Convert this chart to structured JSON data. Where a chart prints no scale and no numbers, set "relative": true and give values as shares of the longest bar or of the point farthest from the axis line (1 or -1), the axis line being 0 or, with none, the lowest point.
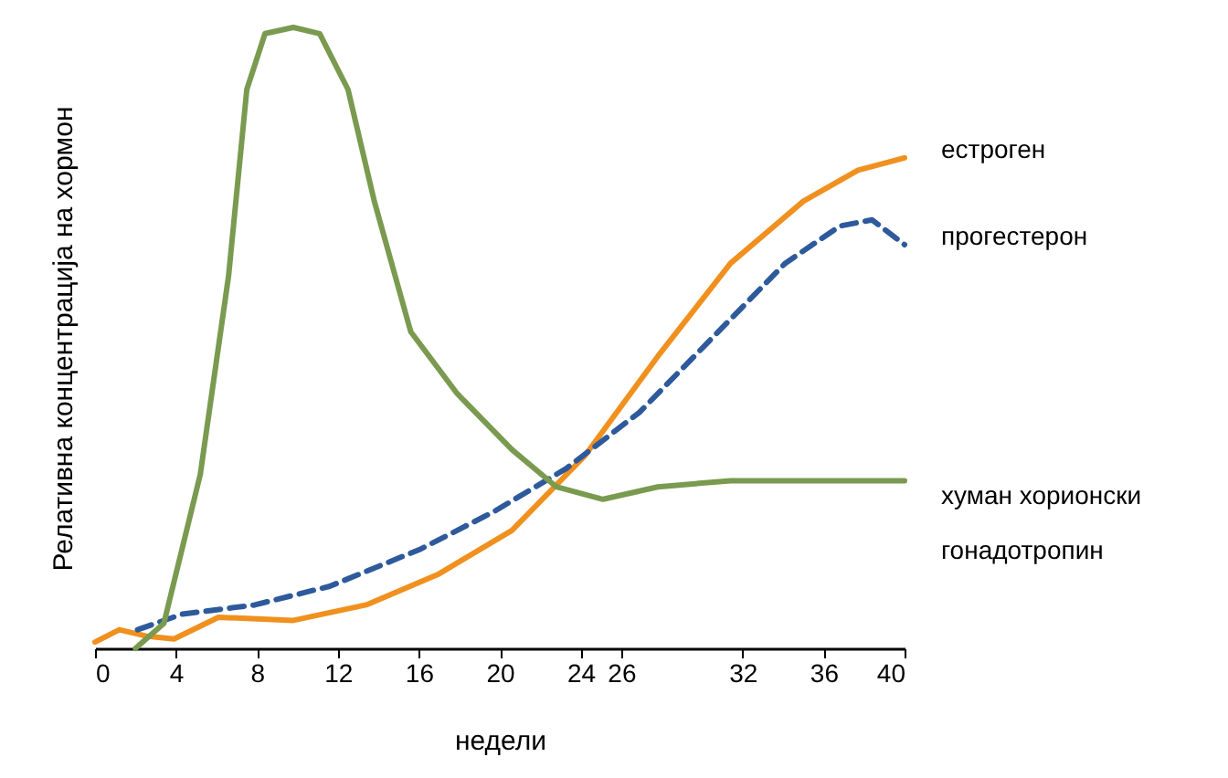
{
  "chart_data": {
    "type": "line",
    "relative": true,
    "xlabel": "недели",
    "ylabel": "Релативна концентрација на хормон",
    "xlim": [
      0,
      40
    ],
    "xticks": [
      0,
      4,
      8,
      12,
      16,
      20,
      24,
      26,
      32,
      36,
      40
    ],
    "grid": false,
    "legend": false,
    "marker": "none",
    "series": [
      {
        "name": "естроген",
        "color": "#f0901e",
        "line_style": "solid",
        "x": [
          0,
          1.2,
          2.5,
          3.9,
          6.1,
          9.8,
          13.4,
          17,
          20.6,
          24.2,
          27.8,
          31.4,
          35,
          37.7,
          40
        ],
        "values": [
          0.01,
          0.03,
          0.02,
          0.015,
          0.05,
          0.045,
          0.07,
          0.12,
          0.19,
          0.31,
          0.47,
          0.62,
          0.72,
          0.77,
          0.79
        ]
      },
      {
        "name": "прогестерон",
        "color": "#2e5a9c",
        "line_style": "dashed",
        "x": [
          2.1,
          4.3,
          7.9,
          11.6,
          16.1,
          19.7,
          23.3,
          26.9,
          30.5,
          34.1,
          36.8,
          38.4,
          40
        ],
        "values": [
          0.03,
          0.055,
          0.07,
          0.1,
          0.16,
          0.22,
          0.29,
          0.38,
          0.5,
          0.62,
          0.68,
          0.69,
          0.65
        ]
      },
      {
        "name": "хуман хорионски гонадотропин",
        "color": "#7a9a50",
        "line_style": "solid",
        "x": [
          2,
          3.4,
          4.3,
          5.2,
          6.6,
          7.5,
          8.4,
          9.8,
          11.1,
          12.5,
          13.8,
          15.6,
          17.9,
          20.6,
          22.8,
          25.1,
          27.8,
          31.4,
          40
        ],
        "values": [
          0,
          0.04,
          0.16,
          0.28,
          0.6,
          0.9,
          0.99,
          1,
          0.99,
          0.9,
          0.72,
          0.51,
          0.41,
          0.32,
          0.26,
          0.24,
          0.26,
          0.27,
          0.27
        ]
      }
    ]
  }
}
